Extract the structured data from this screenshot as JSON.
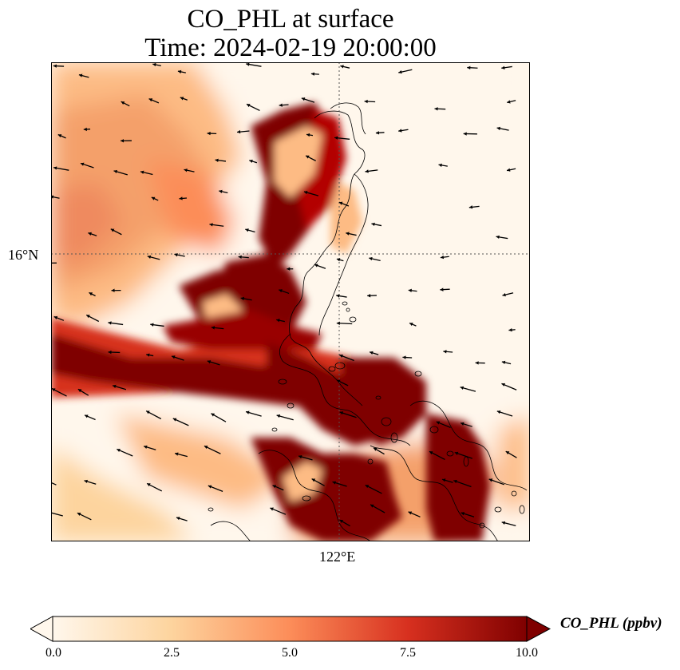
{
  "title": {
    "line1": "CO_PHL at surface",
    "line2": "Time: 2024-02-19 20:00:00"
  },
  "map": {
    "variable": "CO_PHL",
    "units": "ppbv",
    "grid_lines": {
      "lat": "16°N",
      "lon": "122°E"
    },
    "colormap": "OrRd",
    "features": [
      "concentration field",
      "wind vectors",
      "coastlines"
    ]
  },
  "colorbar": {
    "label": "CO_PHL (ppbv)",
    "min": 0.0,
    "max": 10.0,
    "ticks": [
      "0.0",
      "2.5",
      "5.0",
      "7.5",
      "10.0"
    ],
    "extend": "both",
    "colors": [
      "#fff7ec",
      "#fdd49e",
      "#fc8d59",
      "#d7301f",
      "#7f0000"
    ]
  }
}
